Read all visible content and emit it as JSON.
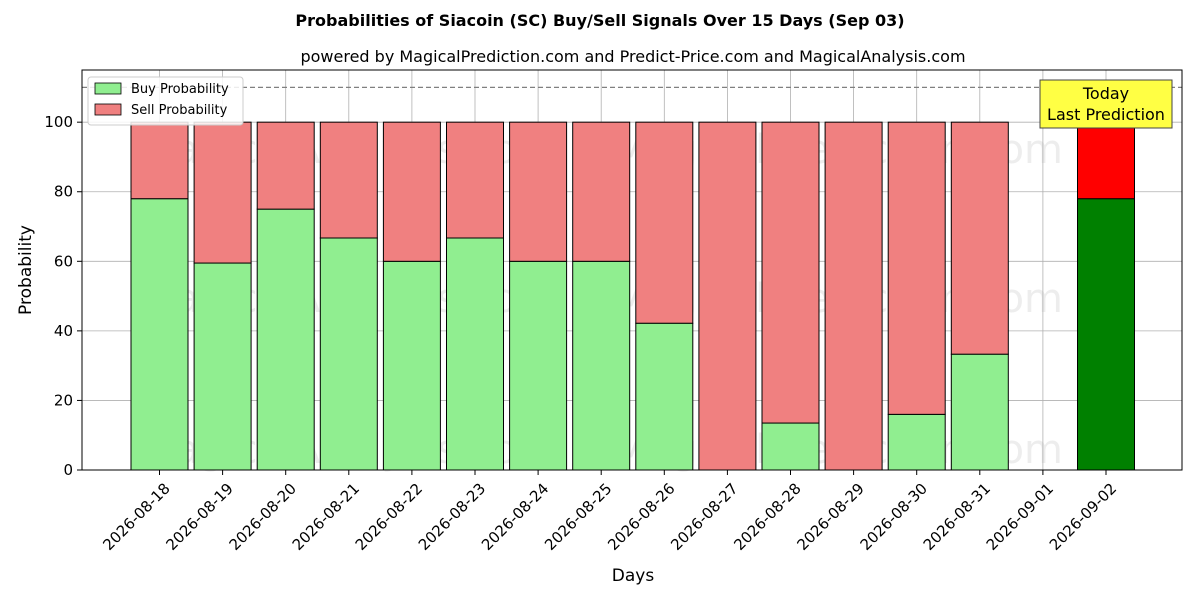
{
  "chart_data": {
    "type": "bar",
    "stacked": true,
    "title": "Probabilities of Siacoin (SC) Buy/Sell Signals Over 15 Days (Sep 03)",
    "subtitle": "powered by MagicalPrediction.com and Predict-Price.com and MagicalAnalysis.com",
    "xlabel": "Days",
    "ylabel": "Probability",
    "ylim": [
      0,
      115
    ],
    "yticks": [
      0,
      20,
      40,
      60,
      80,
      100
    ],
    "reference_line": 110,
    "grid": true,
    "legend_position": "top-left",
    "categories": [
      "2026-08-18",
      "2026-08-19",
      "2026-08-20",
      "2026-08-21",
      "2026-08-22",
      "2026-08-23",
      "2026-08-24",
      "2026-08-25",
      "2026-08-26",
      "2026-08-27",
      "2026-08-28",
      "2026-08-29",
      "2026-08-30",
      "2026-08-31",
      "2026-09-01",
      "2026-09-02"
    ],
    "series": [
      {
        "name": "Buy Probability",
        "color": "#90ee90",
        "today_color": "#008000",
        "values": [
          78,
          59.5,
          75,
          66.7,
          60,
          66.7,
          60,
          60,
          42.2,
          0,
          13.5,
          0,
          16,
          33.3,
          null,
          78
        ]
      },
      {
        "name": "Sell Probability",
        "color": "#f08080",
        "today_color": "#ff0000",
        "values": [
          22,
          40.5,
          25,
          33.3,
          40,
          33.3,
          40,
          40,
          57.8,
          100,
          86.5,
          100,
          84,
          66.7,
          null,
          22
        ]
      }
    ],
    "today_index": 15,
    "annotation": {
      "line1": "Today",
      "line2": "Last Prediction",
      "background": "#ffff44"
    },
    "watermarks": [
      "MagicalAnalysis.com",
      "MagicalPrediction.com"
    ]
  }
}
